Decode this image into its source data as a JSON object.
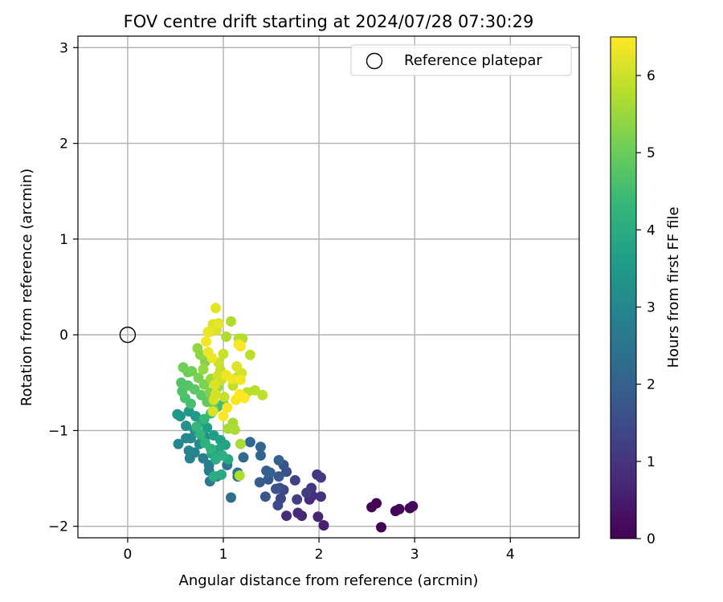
{
  "chart_data": {
    "type": "scatter",
    "title": "FOV centre drift starting at 2024/07/28 07:30:29",
    "xlabel": "Angular distance from reference (arcmin)",
    "ylabel": "Rotation from reference (arcmin)",
    "xlim": [
      -0.52,
      4.72
    ],
    "ylim": [
      -2.12,
      3.12
    ],
    "xticks": [
      0,
      1,
      2,
      3,
      4
    ],
    "yticks": [
      -2,
      -1,
      0,
      1,
      2,
      3
    ],
    "xtick_labels": [
      "0",
      "1",
      "2",
      "3",
      "4"
    ],
    "ytick_labels": [
      "−2",
      "−1",
      "0",
      "1",
      "2",
      "3"
    ],
    "grid": true,
    "legend": {
      "placement": "top-right",
      "entries": [
        {
          "label": "Reference platepar",
          "marker": "open-circle"
        }
      ]
    },
    "reference_point": {
      "x": 0,
      "y": 0
    },
    "colorbar": {
      "label": "Hours from first FF file",
      "colormap": "viridis",
      "range": [
        0,
        6.5
      ],
      "ticks": [
        0,
        1,
        2,
        3,
        4,
        5,
        6
      ],
      "tick_labels": [
        "0",
        "1",
        "2",
        "3",
        "4",
        "5",
        "6"
      ]
    },
    "colormap_stops": [
      "#440154",
      "#482878",
      "#3e4a89",
      "#31688e",
      "#26828e",
      "#1f9e89",
      "#35b779",
      "#6ece58",
      "#b5de2b",
      "#fde725"
    ],
    "points": [
      [
        2.65,
        -2.01,
        0.0
      ],
      [
        2.6,
        -1.76,
        0.02
      ],
      [
        2.55,
        -1.8,
        0.05
      ],
      [
        2.8,
        -1.84,
        0.08
      ],
      [
        2.84,
        -1.82,
        0.1
      ],
      [
        2.95,
        -1.81,
        0.12
      ],
      [
        2.98,
        -1.79,
        0.15
      ],
      [
        2.05,
        -1.99,
        0.6
      ],
      [
        1.99,
        -1.9,
        0.65
      ],
      [
        1.82,
        -1.89,
        0.7
      ],
      [
        1.78,
        -1.86,
        0.75
      ],
      [
        1.66,
        -1.89,
        0.8
      ],
      [
        1.9,
        -1.72,
        0.85
      ],
      [
        1.93,
        -1.68,
        0.9
      ],
      [
        2.02,
        -1.69,
        0.95
      ],
      [
        1.92,
        -1.6,
        1.0
      ],
      [
        1.98,
        -1.46,
        1.05
      ],
      [
        2.02,
        -1.49,
        1.1
      ],
      [
        1.87,
        -1.65,
        1.15
      ],
      [
        1.77,
        -1.72,
        1.2
      ],
      [
        1.75,
        -1.52,
        1.25
      ],
      [
        1.63,
        -1.62,
        1.3
      ],
      [
        1.6,
        -1.71,
        1.35
      ],
      [
        1.57,
        -1.78,
        1.45
      ],
      [
        1.59,
        -1.6,
        1.55
      ],
      [
        1.66,
        -1.43,
        1.6
      ],
      [
        1.63,
        -1.36,
        1.65
      ],
      [
        1.55,
        -1.61,
        1.7
      ],
      [
        1.44,
        -1.69,
        1.75
      ],
      [
        1.58,
        -1.48,
        1.8
      ],
      [
        1.47,
        -1.51,
        1.85
      ],
      [
        1.38,
        -1.54,
        1.9
      ],
      [
        1.45,
        -1.42,
        1.95
      ],
      [
        1.49,
        -1.44,
        2.0
      ],
      [
        1.58,
        -1.31,
        2.05
      ],
      [
        1.39,
        -1.26,
        2.1
      ],
      [
        1.39,
        -1.17,
        2.15
      ],
      [
        1.28,
        -1.12,
        2.2
      ],
      [
        1.21,
        -1.28,
        2.25
      ],
      [
        1.15,
        -1.48,
        2.3
      ],
      [
        1.15,
        -1.44,
        2.35
      ],
      [
        1.08,
        -1.7,
        2.4
      ],
      [
        1.04,
        -1.36,
        2.5
      ],
      [
        0.93,
        -1.48,
        2.6
      ],
      [
        0.86,
        -1.53,
        2.65
      ],
      [
        0.85,
        -1.42,
        2.7
      ],
      [
        0.85,
        -1.36,
        2.75
      ],
      [
        0.79,
        -1.29,
        2.8
      ],
      [
        0.65,
        -1.29,
        2.85
      ],
      [
        0.7,
        -1.23,
        2.9
      ],
      [
        0.64,
        -1.21,
        2.95
      ],
      [
        0.53,
        -1.14,
        3.0
      ],
      [
        0.61,
        -1.08,
        3.05
      ],
      [
        0.66,
        -1.08,
        3.1
      ],
      [
        0.75,
        -1.14,
        3.15
      ],
      [
        0.81,
        -1.07,
        3.2
      ],
      [
        0.7,
        -0.99,
        3.25
      ],
      [
        0.61,
        -0.95,
        3.3
      ],
      [
        0.55,
        -0.85,
        3.35
      ],
      [
        0.52,
        -0.83,
        3.4
      ],
      [
        0.64,
        -0.8,
        3.45
      ],
      [
        0.71,
        -0.85,
        3.5
      ],
      [
        0.78,
        -0.9,
        3.55
      ],
      [
        0.83,
        -0.97,
        3.6
      ],
      [
        0.9,
        -1.05,
        3.65
      ],
      [
        0.97,
        -1.1,
        3.7
      ],
      [
        1.02,
        -1.15,
        3.75
      ],
      [
        0.95,
        -1.2,
        3.8
      ],
      [
        0.88,
        -1.24,
        3.85
      ],
      [
        1.05,
        -1.3,
        3.9
      ],
      [
        0.98,
        -1.46,
        3.95
      ],
      [
        0.9,
        -1.48,
        4.0
      ],
      [
        0.92,
        -1.3,
        4.05
      ],
      [
        0.99,
        -1.26,
        4.1
      ],
      [
        0.87,
        -1.19,
        4.15
      ],
      [
        0.81,
        -1.13,
        4.2
      ],
      [
        0.76,
        -1.04,
        4.25
      ],
      [
        0.72,
        -0.96,
        4.3
      ],
      [
        0.8,
        -0.88,
        4.35
      ],
      [
        0.87,
        -0.82,
        4.4
      ],
      [
        0.94,
        -0.75,
        4.45
      ],
      [
        1.0,
        -0.72,
        4.5
      ],
      [
        0.66,
        -0.72,
        4.55
      ],
      [
        0.6,
        -0.66,
        4.6
      ],
      [
        0.57,
        -0.59,
        4.65
      ],
      [
        0.56,
        -0.5,
        4.7
      ],
      [
        0.63,
        -0.53,
        4.75
      ],
      [
        0.7,
        -0.57,
        4.8
      ],
      [
        0.77,
        -0.63,
        4.85
      ],
      [
        0.83,
        -0.7,
        4.9
      ],
      [
        0.9,
        -0.78,
        4.95
      ],
      [
        0.63,
        -0.39,
        5.0
      ],
      [
        0.58,
        -0.34,
        5.05
      ],
      [
        0.67,
        -0.38,
        5.1
      ],
      [
        0.74,
        -0.45,
        5.15
      ],
      [
        0.8,
        -0.52,
        5.2
      ],
      [
        0.86,
        -0.6,
        5.25
      ],
      [
        0.81,
        -0.28,
        5.3
      ],
      [
        0.76,
        -0.21,
        5.35
      ],
      [
        0.73,
        -0.14,
        5.4
      ],
      [
        0.79,
        -0.36,
        5.45
      ],
      [
        0.87,
        -0.46,
        5.5
      ],
      [
        0.94,
        -0.55,
        5.55
      ],
      [
        1.1,
        -0.92,
        5.6
      ],
      [
        1.05,
        -0.98,
        5.62
      ],
      [
        1.18,
        -1.14,
        5.65
      ],
      [
        1.12,
        -0.99,
        5.68
      ],
      [
        1.17,
        -1.47,
        5.7
      ],
      [
        1.03,
        -0.02,
        5.72
      ],
      [
        1.08,
        0.14,
        5.74
      ],
      [
        1.16,
        -0.04,
        5.76
      ],
      [
        1.2,
        -0.04,
        5.78
      ],
      [
        1.25,
        -0.6,
        5.8
      ],
      [
        1.33,
        -0.58,
        5.82
      ],
      [
        1.41,
        -0.63,
        5.84
      ],
      [
        1.28,
        -0.21,
        5.86
      ],
      [
        1.16,
        -0.43,
        5.88
      ],
      [
        1.1,
        -0.53,
        5.9
      ],
      [
        1.01,
        -0.65,
        5.92
      ],
      [
        0.97,
        -0.37,
        5.95
      ],
      [
        1.0,
        -0.2,
        5.98
      ],
      [
        0.98,
        -0.47,
        6.0
      ],
      [
        0.95,
        -0.29,
        6.02
      ],
      [
        0.94,
        -0.43,
        6.05
      ],
      [
        0.92,
        -0.62,
        6.08
      ],
      [
        0.9,
        -0.68,
        6.1
      ],
      [
        0.89,
        -0.8,
        6.12
      ],
      [
        0.91,
        -0.52,
        6.15
      ],
      [
        0.93,
        0.05,
        6.18
      ],
      [
        0.89,
        0.11,
        6.2
      ],
      [
        0.86,
        0.03,
        6.22
      ],
      [
        0.92,
        0.28,
        6.25
      ],
      [
        0.95,
        0.12,
        6.27
      ],
      [
        0.84,
        -0.18,
        6.3
      ],
      [
        0.88,
        -0.24,
        6.32
      ],
      [
        1.03,
        -0.42,
        6.35
      ],
      [
        1.09,
        -0.46,
        6.38
      ],
      [
        1.18,
        -0.47,
        6.4
      ],
      [
        1.13,
        -0.68,
        6.42
      ],
      [
        1.04,
        -0.76,
        6.45
      ],
      [
        1.0,
        -0.85,
        6.48
      ],
      [
        1.17,
        -0.62,
        6.5
      ],
      [
        1.22,
        -0.66,
        6.5
      ],
      [
        1.18,
        -0.12,
        6.5
      ],
      [
        1.16,
        -0.1,
        6.45
      ],
      [
        0.82,
        -0.07,
        6.4
      ],
      [
        0.84,
        0.03,
        6.3
      ],
      [
        1.14,
        -0.33,
        6.2
      ],
      [
        1.19,
        -0.4,
        6.1
      ]
    ]
  }
}
